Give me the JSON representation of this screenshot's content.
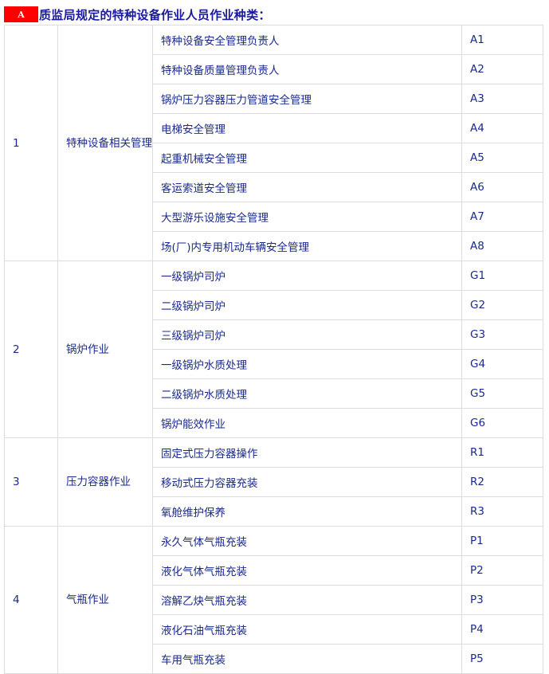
{
  "header": {
    "badge": "A",
    "title": "质监局规定的特种设备作业人员作业种类："
  },
  "groups": [
    {
      "num": "1",
      "category": "特种设备相关管理",
      "items": [
        [
          "特种设备安全管理负责人",
          "A1"
        ],
        [
          "特种设备质量管理负责人",
          "A2"
        ],
        [
          "锅炉压力容器压力管道安全管理",
          "A3"
        ],
        [
          "电梯安全管理",
          "A4"
        ],
        [
          "起重机械安全管理",
          "A5"
        ],
        [
          "客运索道安全管理",
          "A6"
        ],
        [
          "大型游乐设施安全管理",
          "A7"
        ],
        [
          "场(厂)内专用机动车辆安全管理",
          "A8"
        ]
      ]
    },
    {
      "num": "2",
      "category": "锅炉作业",
      "items": [
        [
          "一级锅炉司炉",
          "G1"
        ],
        [
          "二级锅炉司炉",
          "G2"
        ],
        [
          "三级锅炉司炉",
          "G3"
        ],
        [
          "一级锅炉水质处理",
          "G4"
        ],
        [
          "二级锅炉水质处理",
          "G5"
        ],
        [
          "锅炉能效作业",
          "G6"
        ]
      ]
    },
    {
      "num": "3",
      "category": "压力容器作业",
      "items": [
        [
          "固定式压力容器操作",
          "R1"
        ],
        [
          "移动式压力容器充装",
          "R2"
        ],
        [
          "氧舱维护保养",
          "R3"
        ]
      ]
    },
    {
      "num": "4",
      "category": "气瓶作业",
      "items": [
        [
          "永久气体气瓶充装",
          "P1"
        ],
        [
          "液化气体气瓶充装",
          "P2"
        ],
        [
          "溶解乙炔气瓶充装",
          "P3"
        ],
        [
          "液化石油气瓶充装",
          "P4"
        ],
        [
          "车用气瓶充装",
          "P5"
        ]
      ]
    }
  ]
}
